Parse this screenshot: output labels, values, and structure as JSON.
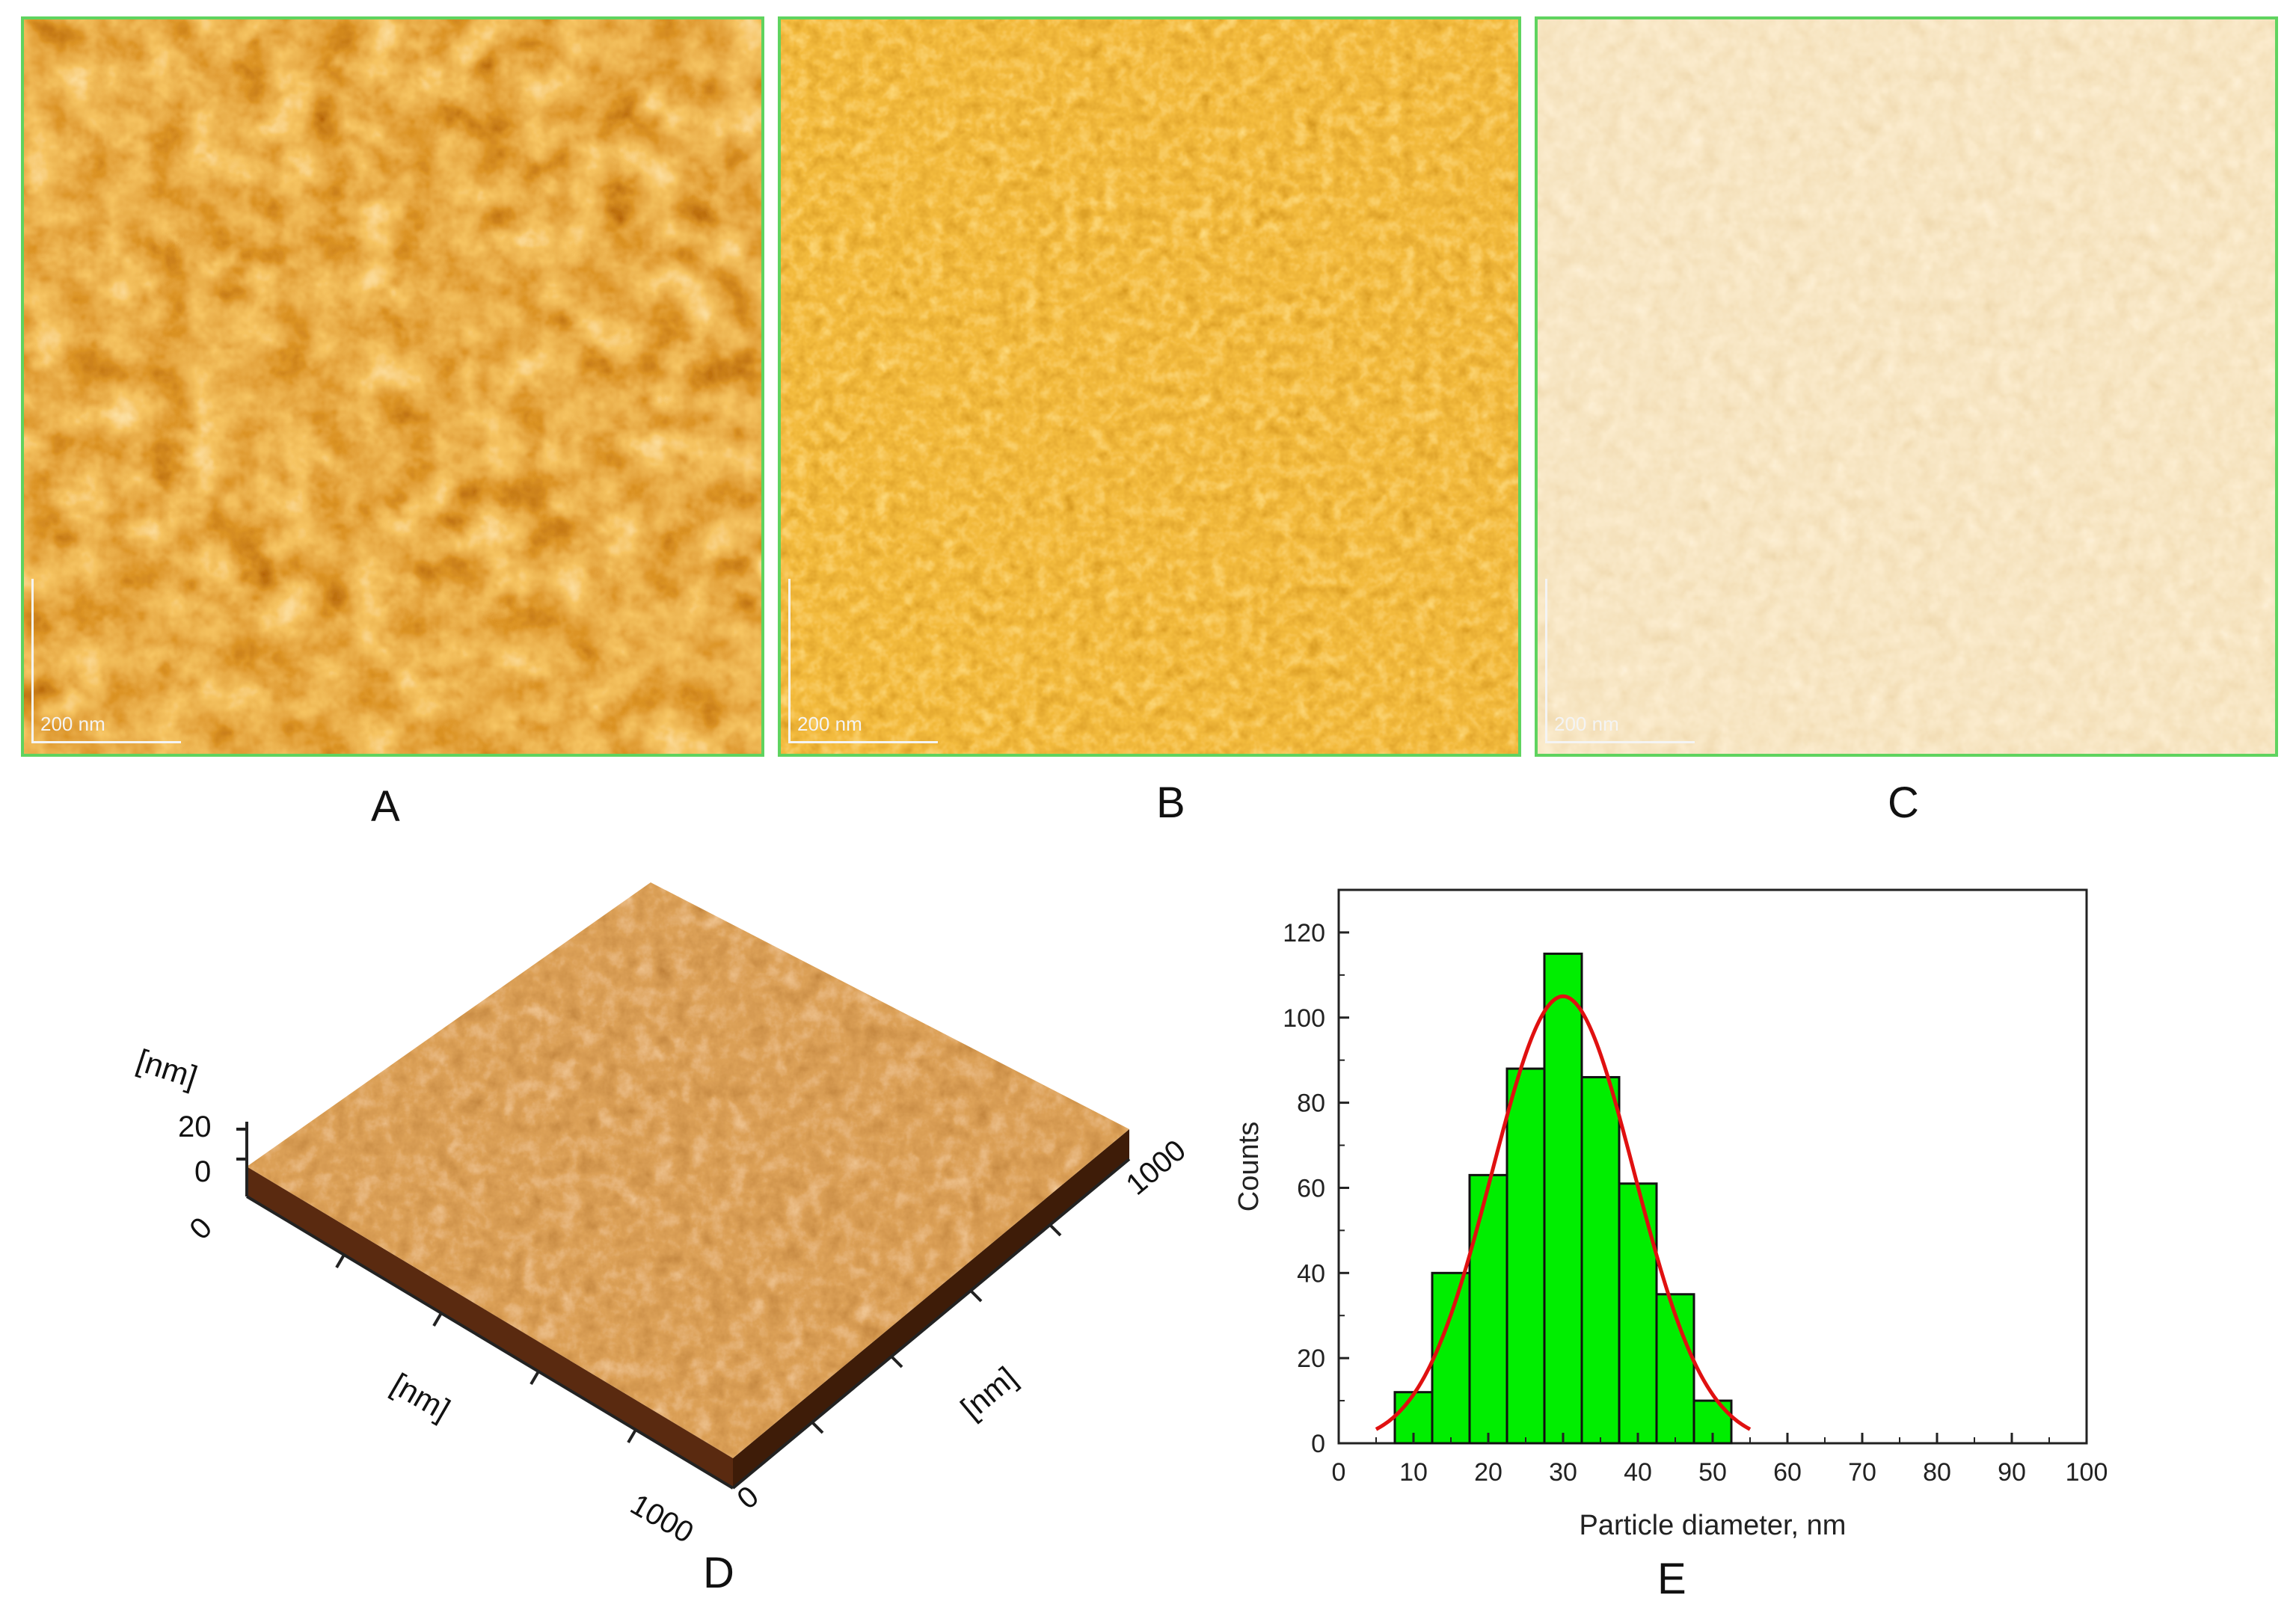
{
  "panels": {
    "a": {
      "label": "A",
      "scale_text": "200 nm"
    },
    "b": {
      "label": "B",
      "scale_text": "200 nm"
    },
    "c": {
      "label": "C",
      "scale_text": "200 nm"
    },
    "d": {
      "label": "D",
      "z_unit": "[nm]",
      "z_ticks": [
        "20",
        "0"
      ],
      "x_unit": "[nm]",
      "y_unit": "[nm]",
      "x_ticks": [
        "0",
        "1000"
      ],
      "y_ticks": [
        "0",
        "1000"
      ]
    },
    "e": {
      "label": "E"
    }
  },
  "colors": {
    "border": "#5fd35f",
    "bar": "#00ee00",
    "fit": "#e01010"
  },
  "chart_data": {
    "type": "bar",
    "xlabel": "Particle diameter, nm",
    "ylabel": "Counts",
    "xlim": [
      0,
      100
    ],
    "ylim": [
      0,
      130
    ],
    "xticks": [
      0,
      10,
      20,
      30,
      40,
      50,
      60,
      70,
      80,
      90,
      100
    ],
    "yticks": [
      0,
      20,
      40,
      60,
      80,
      100,
      120
    ],
    "bin_width": 5,
    "bins": [
      {
        "center": 10,
        "count": 12
      },
      {
        "center": 15,
        "count": 40
      },
      {
        "center": 20,
        "count": 63
      },
      {
        "center": 25,
        "count": 88
      },
      {
        "center": 30,
        "count": 115
      },
      {
        "center": 35,
        "count": 86
      },
      {
        "center": 40,
        "count": 61
      },
      {
        "center": 45,
        "count": 35
      },
      {
        "center": 50,
        "count": 10
      }
    ],
    "fit": {
      "type": "gaussian",
      "peak_x": 30,
      "peak_y": 105,
      "sigma": 9.5,
      "x_range": [
        5,
        55
      ]
    }
  }
}
